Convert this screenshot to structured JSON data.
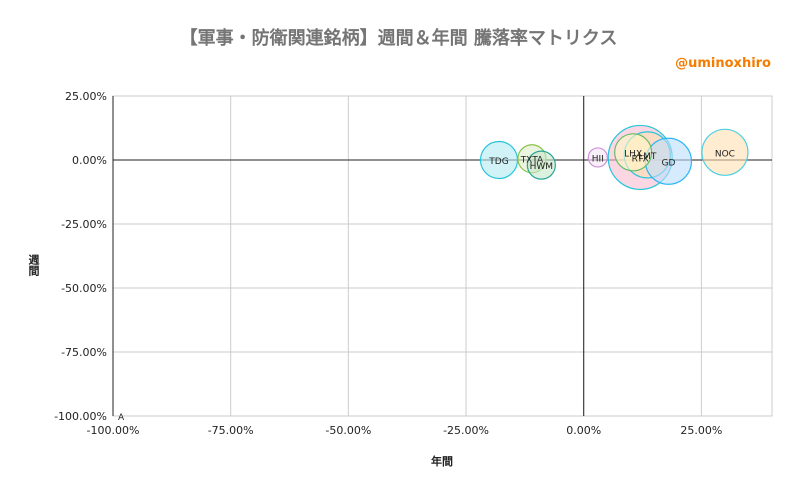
{
  "chart_data": {
    "type": "scatter",
    "title": "【軍事・防衛関連銘柄】週間＆年間 騰落率マトリクス",
    "credit": "@uminoxhiro",
    "xlabel": "年間",
    "ylabel": "週間",
    "xlim": [
      -1.0,
      0.4
    ],
    "ylim": [
      -1.0,
      0.25
    ],
    "xticks": [
      -1.0,
      -0.75,
      -0.5,
      -0.25,
      0.0,
      0.25
    ],
    "yticks": [
      0.25,
      0.0,
      -0.25,
      -0.5,
      -0.75,
      -1.0
    ],
    "xtick_labels": [
      "-100.00%",
      "-75.00%",
      "-50.00%",
      "-25.00%",
      "0.00%",
      "25.00%"
    ],
    "ytick_labels": [
      "25.00%",
      "0.00%",
      "-25.00%",
      "-50.00%",
      "-75.00%",
      "-100.00%"
    ],
    "grid": true,
    "points": [
      {
        "label": "TDG",
        "x": -0.18,
        "y": 0.0,
        "size": 3,
        "fill": "#b2ebf2",
        "stroke": "#26c6da"
      },
      {
        "label": "TXTA",
        "x": -0.11,
        "y": 0.005,
        "size": 2,
        "fill": "#dcedc8",
        "stroke": "#8bc34a"
      },
      {
        "label": "HWM",
        "x": -0.09,
        "y": -0.02,
        "size": 2,
        "fill": "#c8e6c9",
        "stroke": "#26a69a"
      },
      {
        "label": "HII",
        "x": 0.03,
        "y": 0.01,
        "size": 1,
        "fill": "#f3e5f5",
        "stroke": "#ce93d8"
      },
      {
        "label": "RTX",
        "x": 0.12,
        "y": 0.01,
        "size": 6,
        "fill": "#f8bbd0",
        "stroke": "#26c6da"
      },
      {
        "label": "LHX",
        "x": 0.105,
        "y": 0.03,
        "size": 3,
        "fill": "#fff9c4",
        "stroke": "#66bb6a"
      },
      {
        "label": "LMT",
        "x": 0.135,
        "y": 0.02,
        "size": 4,
        "fill": "#ffe0b2",
        "stroke": "#26c6da"
      },
      {
        "label": "GD",
        "x": 0.18,
        "y": -0.005,
        "size": 4,
        "fill": "#bbdefb",
        "stroke": "#29b6f6"
      },
      {
        "label": "NOC",
        "x": 0.3,
        "y": 0.03,
        "size": 4,
        "fill": "#ffe0b2",
        "stroke": "#4dd0e1"
      },
      {
        "label": "A",
        "x": -1.0,
        "y": -1.0,
        "size": 0,
        "fill": "#ffffff",
        "stroke": "#999999"
      }
    ]
  }
}
